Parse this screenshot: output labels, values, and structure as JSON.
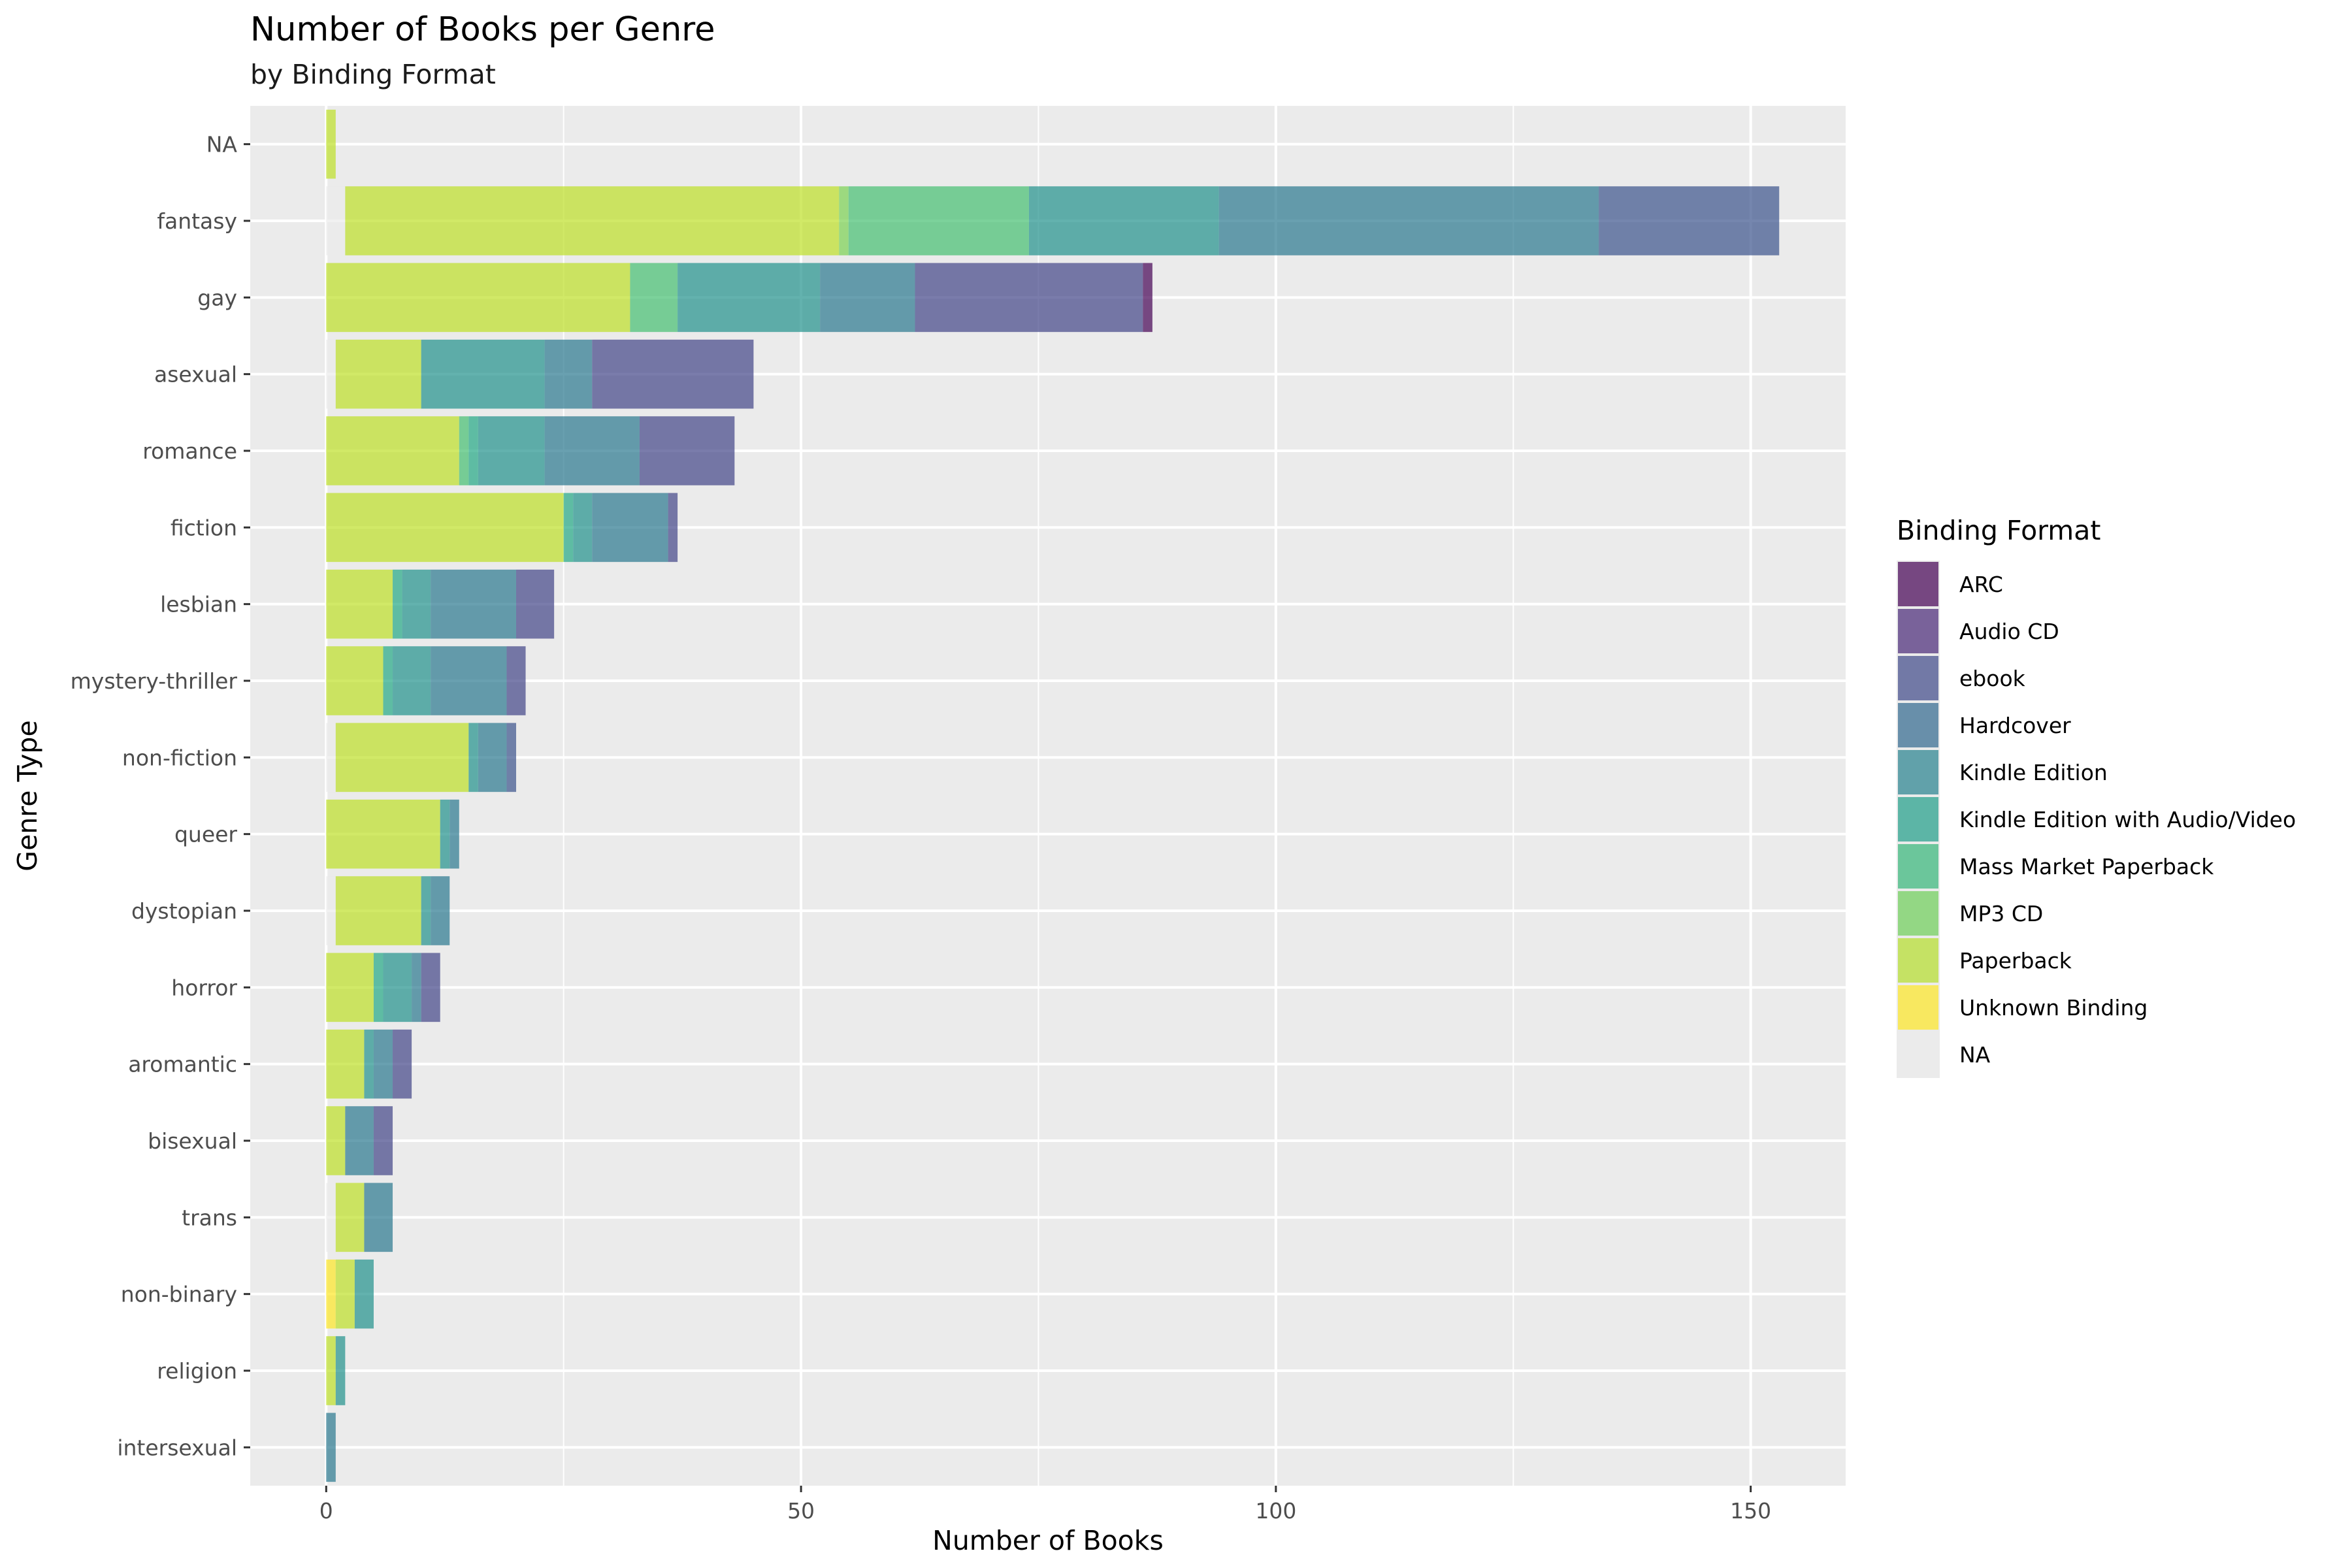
{
  "chart_data": {
    "type": "bar",
    "orientation": "horizontal",
    "stacked": true,
    "title": "Number of Books per Genre",
    "subtitle": "by Binding Format",
    "xlabel": "Number of Books",
    "ylabel": "Genre Type",
    "xlim": [
      -8,
      160
    ],
    "xticks": [
      0,
      50,
      100,
      150
    ],
    "grid": true,
    "legend": {
      "title": "Binding Format",
      "placement": "right"
    },
    "categories": [
      "NA",
      "fantasy",
      "gay",
      "asexual",
      "romance",
      "fiction",
      "lesbian",
      "mystery-thriller",
      "non-fiction",
      "queer",
      "dystopian",
      "horror",
      "aromantic",
      "bisexual",
      "trans",
      "non-binary",
      "religion",
      "intersexual"
    ],
    "series": [
      {
        "name": "NA",
        "color": "#ebebeb",
        "values": [
          0,
          2,
          0,
          1,
          0,
          0,
          0,
          0,
          1,
          0,
          1,
          0,
          0,
          0,
          1,
          0,
          0,
          0
        ]
      },
      {
        "name": "Unknown Binding",
        "color": "#fde725",
        "values": [
          0,
          0,
          0,
          0,
          0,
          0,
          0,
          0,
          0,
          0,
          0,
          0,
          0,
          0,
          0,
          1,
          0,
          0
        ]
      },
      {
        "name": "Paperback",
        "color": "#bddf26",
        "values": [
          1,
          52,
          32,
          9,
          14,
          25,
          7,
          6,
          14,
          12,
          9,
          5,
          4,
          2,
          3,
          2,
          1,
          0
        ]
      },
      {
        "name": "MP3 CD",
        "color": "#7ad151",
        "values": [
          0,
          1,
          0,
          0,
          0,
          0,
          0,
          0,
          0,
          0,
          0,
          0,
          0,
          0,
          0,
          0,
          0,
          0
        ]
      },
      {
        "name": "Mass Market Paperback",
        "color": "#44bf70",
        "values": [
          0,
          19,
          5,
          0,
          1,
          0,
          0,
          0,
          0,
          0,
          0,
          0,
          0,
          0,
          0,
          0,
          0,
          0
        ]
      },
      {
        "name": "Kindle Edition with Audio/Video",
        "color": "#22a884",
        "values": [
          0,
          0,
          0,
          0,
          1,
          1,
          1,
          1,
          0,
          0,
          0,
          1,
          0,
          0,
          0,
          0,
          0,
          0
        ]
      },
      {
        "name": "Kindle Edition",
        "color": "#21918c",
        "values": [
          0,
          20,
          15,
          13,
          7,
          2,
          3,
          4,
          1,
          1,
          1,
          3,
          1,
          0,
          0,
          2,
          1,
          0
        ]
      },
      {
        "name": "Hardcover",
        "color": "#2a788e",
        "values": [
          0,
          40,
          10,
          5,
          10,
          8,
          9,
          8,
          3,
          1,
          2,
          1,
          2,
          3,
          3,
          0,
          0,
          1
        ]
      },
      {
        "name": "ebook",
        "color": "#414487",
        "values": [
          0,
          0,
          24,
          17,
          10,
          1,
          4,
          2,
          0,
          0,
          0,
          2,
          2,
          2,
          0,
          0,
          0,
          0
        ]
      },
      {
        "name": "Audio CD",
        "color": "#3b528b",
        "values": [
          0,
          19,
          0,
          0,
          0,
          0,
          0,
          0,
          1,
          0,
          0,
          0,
          0,
          0,
          0,
          0,
          0,
          0
        ]
      },
      {
        "name": "ARC",
        "color": "#440154",
        "values": [
          0,
          0,
          1,
          0,
          0,
          0,
          0,
          0,
          0,
          0,
          0,
          0,
          0,
          0,
          0,
          0,
          0,
          0
        ]
      }
    ],
    "legend_entries": [
      {
        "name": "ARC",
        "color": "#440154"
      },
      {
        "name": "Audio CD",
        "color": "#482878"
      },
      {
        "name": "ebook",
        "color": "#3e4989"
      },
      {
        "name": "Hardcover",
        "color": "#31688e"
      },
      {
        "name": "Kindle Edition",
        "color": "#26828e"
      },
      {
        "name": "Kindle Edition with Audio/Video",
        "color": "#1f9e89"
      },
      {
        "name": "Mass Market Paperback",
        "color": "#35b779"
      },
      {
        "name": "MP3 CD",
        "color": "#6ece58"
      },
      {
        "name": "Paperback",
        "color": "#b5de2b"
      },
      {
        "name": "Unknown Binding",
        "color": "#fde725"
      },
      {
        "name": "NA",
        "color": "#ebebeb"
      }
    ]
  }
}
